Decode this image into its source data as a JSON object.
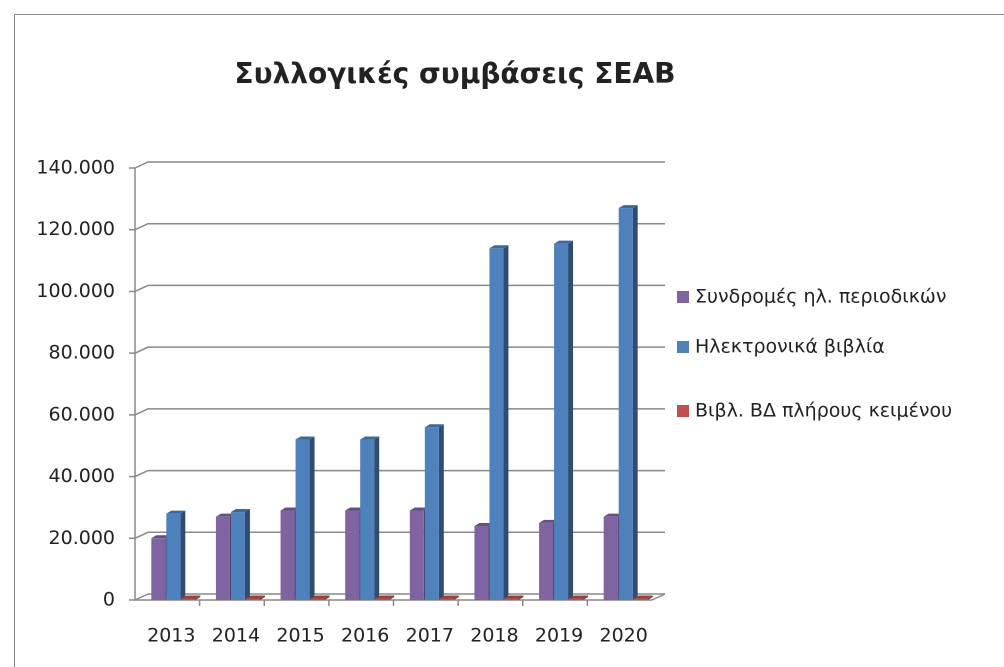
{
  "chart_data": {
    "type": "bar3d",
    "title": "Συλλογικές συμβάσεις ΣΕΑΒ",
    "categories": [
      "2013",
      "2014",
      "2015",
      "2016",
      "2017",
      "2018",
      "2019",
      "2020"
    ],
    "series": [
      {
        "name": "Συνδρομές ηλ. περιοδικών",
        "color": "#8064a2",
        "values": [
          20000,
          27000,
          29000,
          29000,
          29000,
          24000,
          25000,
          27000
        ]
      },
      {
        "name": "Ηλεκτρονικά βιβλία",
        "color": "#4f81bd",
        "values": [
          28000,
          28500,
          52000,
          52000,
          56000,
          114000,
          115500,
          127000
        ]
      },
      {
        "name": "Βιβλ. ΒΔ πλήρους κειμένου",
        "color": "#c0504d",
        "values": [
          500,
          500,
          500,
          500,
          500,
          500,
          500,
          500
        ]
      }
    ],
    "ylim": [
      0,
      140000
    ],
    "yticks": [
      {
        "value": 0,
        "label": "0"
      },
      {
        "value": 20000,
        "label": "20.000"
      },
      {
        "value": 40000,
        "label": "40.000"
      },
      {
        "value": 60000,
        "label": "60.000"
      },
      {
        "value": 80000,
        "label": "80.000"
      },
      {
        "value": 100000,
        "label": "100.000"
      },
      {
        "value": 120000,
        "label": "120.000"
      },
      {
        "value": 140000,
        "label": "140.000"
      }
    ],
    "grid": true,
    "legend": "right"
  }
}
